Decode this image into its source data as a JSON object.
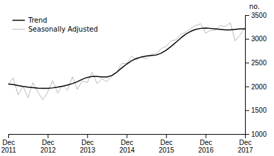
{
  "chart_data": {
    "type": "line",
    "y_label": "no.",
    "categories": [
      "Dec\n2011",
      null,
      null,
      null,
      null,
      null,
      null,
      null,
      "Dec\n2012",
      null,
      null,
      null,
      null,
      null,
      null,
      null,
      "Dec\n2013",
      null,
      null,
      null,
      null,
      null,
      null,
      null,
      "Dec\n2014",
      null,
      null,
      null,
      null,
      null,
      null,
      null,
      "Dec\n2015",
      null,
      null,
      null,
      null,
      null,
      null,
      null,
      "Dec\n2016",
      null,
      null,
      null,
      null,
      null,
      null,
      null,
      "Dec\n2017"
    ],
    "series": [
      {
        "name": "Trend",
        "color": "#000000",
        "values": [
          2050,
          2040,
          2020,
          2000,
          1985,
          1975,
          1965,
          1960,
          1960,
          1970,
          1985,
          2005,
          2030,
          2060,
          2100,
          2150,
          2190,
          2210,
          2210,
          2200,
          2200,
          2230,
          2300,
          2390,
          2470,
          2540,
          2590,
          2620,
          2640,
          2650,
          2660,
          2700,
          2760,
          2840,
          2930,
          3020,
          3100,
          3160,
          3200,
          3220,
          3230,
          3220,
          3210,
          3200,
          3190,
          3190,
          3200,
          3210,
          3210
        ]
      },
      {
        "name": "Seasonally Adjusted",
        "color": "#b0b0b0",
        "values": [
          2050,
          2180,
          1820,
          2000,
          1760,
          2080,
          1880,
          1720,
          1880,
          2120,
          1860,
          2020,
          1920,
          2200,
          1940,
          2120,
          2080,
          2300,
          2060,
          2160,
          2100,
          2220,
          2300,
          2480,
          2480,
          2640,
          2560,
          2620,
          2580,
          2680,
          2680,
          2800,
          2840,
          2960,
          2980,
          3100,
          3140,
          3220,
          3280,
          3320,
          3120,
          3180,
          3180,
          3280,
          3260,
          3340,
          2960,
          3080,
          3240
        ]
      }
    ],
    "ylim": [
      1000,
      3500
    ],
    "yticks": [
      1000,
      1500,
      2000,
      2500,
      3000,
      3500
    ],
    "grid": false,
    "legend": "upper left"
  }
}
